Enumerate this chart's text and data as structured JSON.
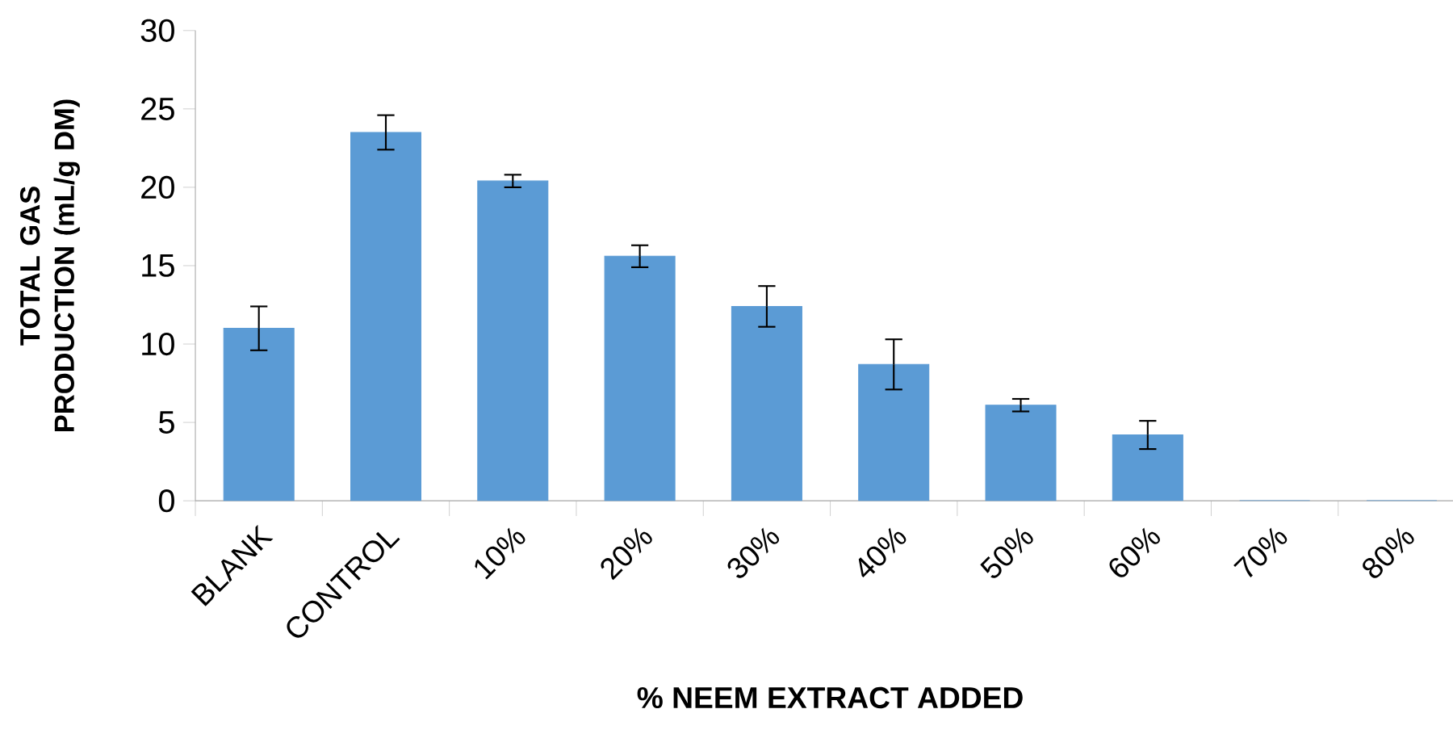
{
  "chart_data": {
    "type": "bar",
    "xlabel": "% NEEM EXTRACT ADDED",
    "ylabel": "TOTAL GAS PRODUCTION (mL/g DM)",
    "categories": [
      "BLANK",
      "CONTROL",
      "10%",
      "20%",
      "30%",
      "40%",
      "50%",
      "60%",
      "70%",
      "80%"
    ],
    "values": [
      11.0,
      23.5,
      20.4,
      15.6,
      12.4,
      8.7,
      6.1,
      4.2,
      0,
      0
    ],
    "errors": [
      1.4,
      1.1,
      0.4,
      0.7,
      1.3,
      1.6,
      0.4,
      0.9,
      null,
      null
    ],
    "color": "#5b9bd5",
    "ylim": [
      0,
      30
    ],
    "yticks": [
      0,
      5,
      10,
      15,
      20,
      25,
      30
    ],
    "grid": false
  }
}
